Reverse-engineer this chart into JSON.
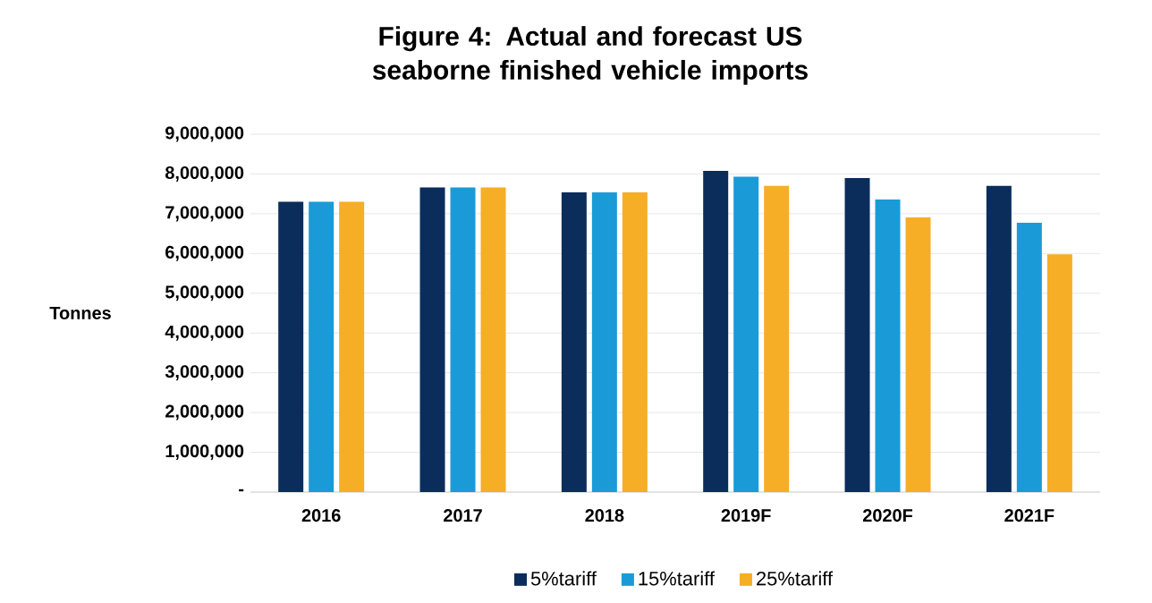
{
  "chart_data": {
    "type": "bar",
    "title": "Figure 4: Actual and forecast US seaborne finished vehicle imports",
    "ylabel": "Tonnes",
    "categories": [
      "2016",
      "2017",
      "2018",
      "2019F",
      "2020F",
      "2021F"
    ],
    "series": [
      {
        "name": "5%tariff",
        "color": "#0b2d5c",
        "values": [
          7300000,
          7660000,
          7540000,
          8080000,
          7900000,
          7700000
        ]
      },
      {
        "name": "15%tariff",
        "color": "#1a9bd7",
        "values": [
          7300000,
          7660000,
          7540000,
          7930000,
          7360000,
          6770000
        ]
      },
      {
        "name": "25%tariff",
        "color": "#f5ae25",
        "values": [
          7300000,
          7660000,
          7540000,
          7700000,
          6910000,
          5980000
        ]
      }
    ],
    "ylim": [
      0,
      9000000
    ],
    "yticks": [
      {
        "value": 0,
        "label": "-"
      },
      {
        "value": 1000000,
        "label": "1,000,000"
      },
      {
        "value": 2000000,
        "label": "2,000,000"
      },
      {
        "value": 3000000,
        "label": "3,000,000"
      },
      {
        "value": 4000000,
        "label": "4,000,000"
      },
      {
        "value": 5000000,
        "label": "5,000,000"
      },
      {
        "value": 6000000,
        "label": "6,000,000"
      },
      {
        "value": 7000000,
        "label": "7,000,000"
      },
      {
        "value": 8000000,
        "label": "8,000,000"
      },
      {
        "value": 9000000,
        "label": "9,000,000"
      }
    ],
    "grid": "y",
    "legend": "bottom"
  }
}
